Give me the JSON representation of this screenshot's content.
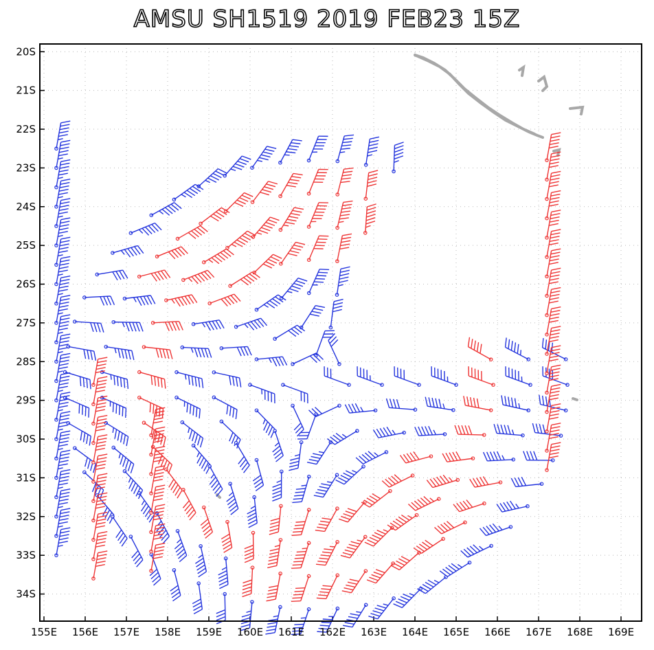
{
  "title": "AMSU SH1519 2019 FEB23 15Z",
  "axes": {
    "lon_labels": [
      "155E",
      "156E",
      "157E",
      "158E",
      "159E",
      "160E",
      "161E",
      "162E",
      "163E",
      "164E",
      "165E",
      "166E",
      "167E",
      "168E",
      "169E"
    ],
    "lat_labels": [
      "20S",
      "21S",
      "22S",
      "23S",
      "24S",
      "25S",
      "26S",
      "27S",
      "28S",
      "29S",
      "30S",
      "31S",
      "32S",
      "33S",
      "34S"
    ],
    "lon_range": [
      154.9,
      169.5
    ],
    "lat_range": [
      -19.8,
      -34.7
    ],
    "grid": "dotted"
  },
  "colors": {
    "low_wind": "#2233dd",
    "high_wind": "#ee3333",
    "land": "#a8a8a8",
    "frame": "#000000"
  },
  "chart_data": {
    "type": "wind_barbs",
    "storm_center": {
      "lon": 161.6,
      "lat": -28.6
    },
    "rings": [
      {
        "radius_deg": 0.8,
        "speed_kt": 30
      },
      {
        "radius_deg": 1.6,
        "speed_kt": 35
      },
      {
        "radius_deg": 2.5,
        "speed_kt": 40
      },
      {
        "radius_deg": 3.4,
        "speed_kt": 45
      },
      {
        "radius_deg": 4.3,
        "speed_kt": 50
      },
      {
        "radius_deg": 5.2,
        "speed_kt": 45
      },
      {
        "radius_deg": 6.1,
        "speed_kt": 40
      }
    ],
    "columns": [
      {
        "lon": 155.3,
        "lat_start": -22.5,
        "lat_end": -33.2,
        "speed_kt": 45
      },
      {
        "lon": 156.2,
        "lat_start": -28.6,
        "lat_end": -34.0,
        "speed_kt": 50
      },
      {
        "lon": 157.6,
        "lat_start": -29.9,
        "lat_end": -33.5,
        "speed_kt": 50
      },
      {
        "lon": 167.2,
        "lat_start": -22.8,
        "lat_end": -31.2,
        "speed_kt": 50
      }
    ]
  }
}
